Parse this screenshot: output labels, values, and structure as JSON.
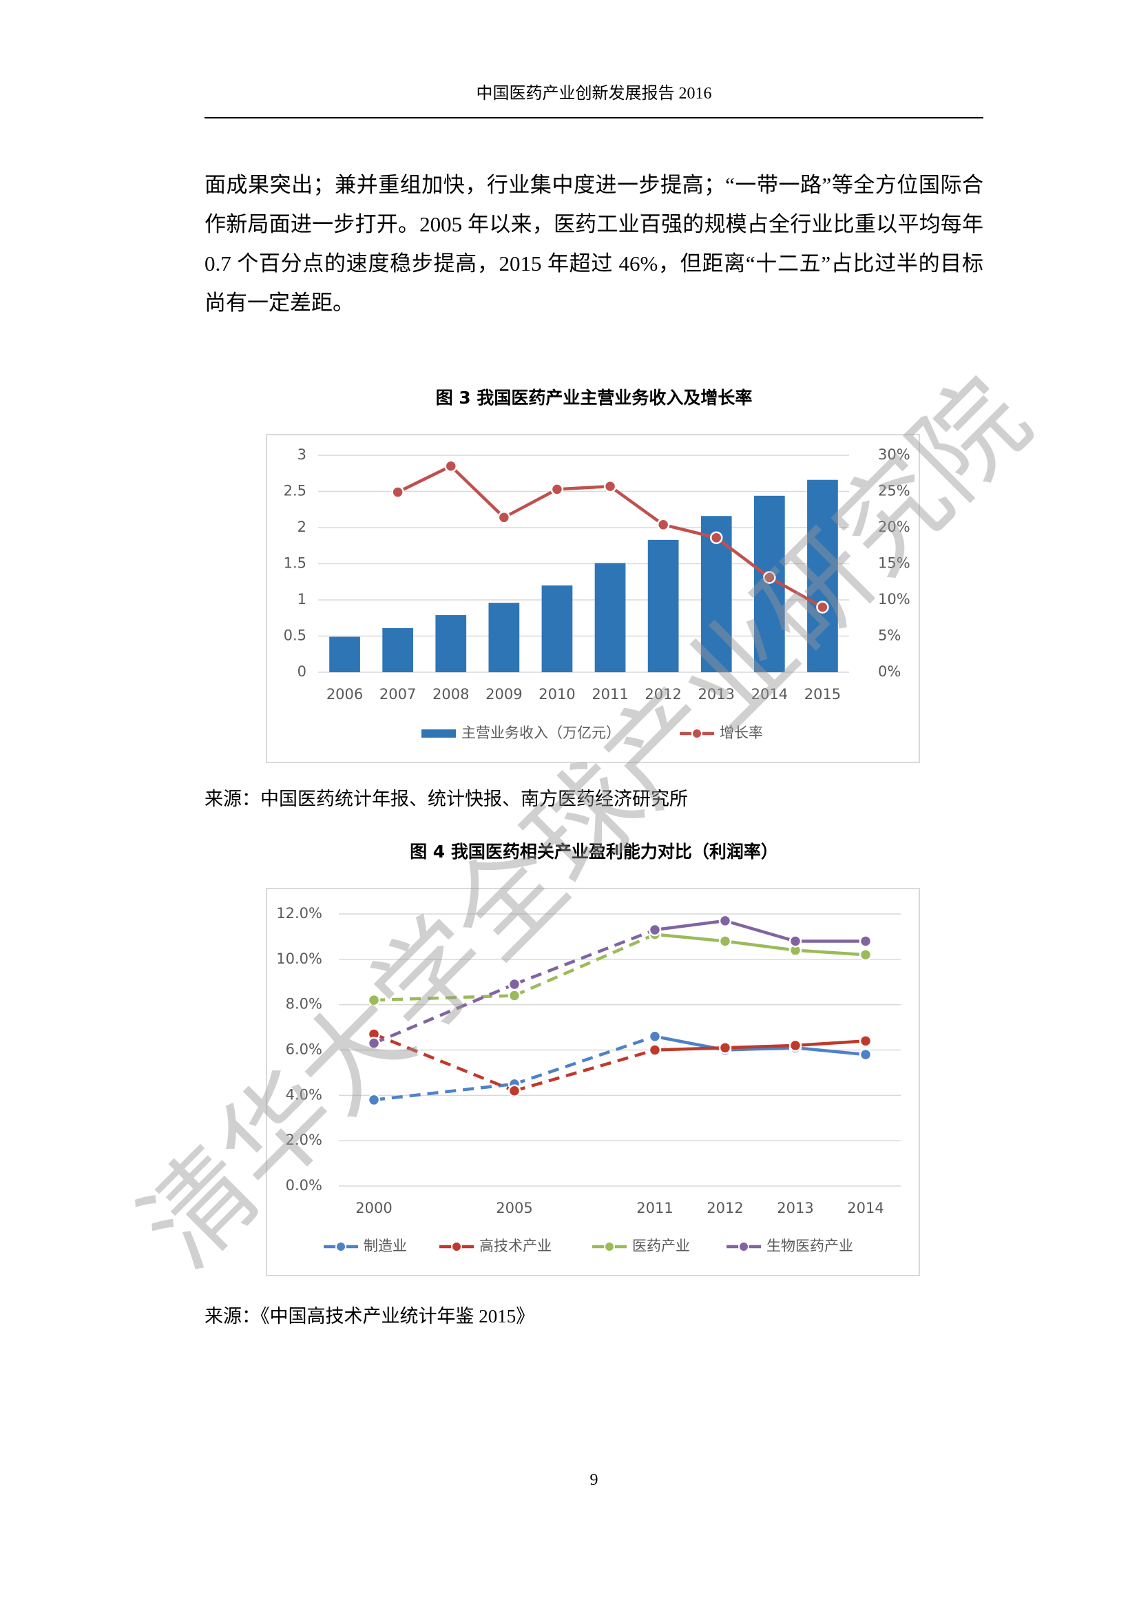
{
  "document": {
    "header": "中国医药产业创新发展报告 2016",
    "paragraph": "面成果突出；兼并重组加快，行业集中度进一步提高；“一带一路”等全方位国际合作新局面进一步打开。2005 年以来，医药工业百强的规模占全行业比重以平均每年 0.7 个百分点的速度稳步提高，2015 年超过 46%，但距离“十二五”占比过半的目标尚有一定差距。",
    "page_number": "9",
    "watermark": "清华大学全球产业研究院"
  },
  "chart_data": [
    {
      "type": "bar",
      "title": "图 3 我国医药产业主营业务收入及增长率",
      "source": "来源：中国医药统计年报、统计快报、南方医药经济研究所",
      "categories": [
        "2006",
        "2007",
        "2008",
        "2009",
        "2010",
        "2011",
        "2012",
        "2013",
        "2014",
        "2015"
      ],
      "series": [
        {
          "name": "主营业务收入（万亿元）",
          "type": "bar",
          "color": "#2e75b6",
          "values": [
            0.49,
            0.61,
            0.79,
            0.96,
            1.2,
            1.51,
            1.83,
            2.16,
            2.44,
            2.66
          ]
        },
        {
          "name": "增长率",
          "type": "line",
          "axis": "y2",
          "color": "#c0504d",
          "values": [
            null,
            24.9,
            28.5,
            21.4,
            25.3,
            25.7,
            20.4,
            18.6,
            13.1,
            9.0
          ]
        }
      ],
      "ylim": [
        0,
        3
      ],
      "yticks": [
        0,
        0.5,
        1,
        1.5,
        2,
        2.5,
        3
      ],
      "y2lim": [
        0,
        30
      ],
      "y2ticks": [
        {
          "value": 0,
          "label": "0%"
        },
        {
          "value": 5,
          "label": "5%"
        },
        {
          "value": 10,
          "label": "10%"
        },
        {
          "value": 15,
          "label": "15%"
        },
        {
          "value": 20,
          "label": "20%"
        },
        {
          "value": 25,
          "label": "25%"
        },
        {
          "value": 30,
          "label": "30%"
        }
      ],
      "grid": true,
      "legend": "bottom"
    },
    {
      "type": "line",
      "title": "图 4 我国医药相关产业盈利能力对比（利润率）",
      "source": "来源：《中国高技术产业统计年鉴 2015》",
      "categories": [
        "2000",
        null,
        "2005",
        null,
        "2011",
        "2012",
        "2013",
        "2014"
      ],
      "series": [
        {
          "name": "制造业",
          "color": "#4f81c7",
          "values": [
            3.8,
            null,
            4.5,
            null,
            6.6,
            6.0,
            6.1,
            5.8
          ]
        },
        {
          "name": "高技术产业",
          "color": "#c0392b",
          "values": [
            6.7,
            null,
            4.2,
            null,
            6.0,
            6.1,
            6.2,
            6.4
          ]
        },
        {
          "name": "医药产业",
          "color": "#9bbb59",
          "values": [
            8.2,
            null,
            8.4,
            null,
            11.1,
            10.8,
            10.4,
            10.2
          ]
        },
        {
          "name": "生物医药产业",
          "color": "#8064a2",
          "values": [
            6.3,
            null,
            8.9,
            null,
            11.3,
            11.7,
            10.8,
            10.8
          ]
        }
      ],
      "ylim": [
        0,
        12
      ],
      "yticks": [
        {
          "value": 0,
          "label": "0.0%"
        },
        {
          "value": 2,
          "label": "2.0%"
        },
        {
          "value": 4,
          "label": "4.0%"
        },
        {
          "value": 6,
          "label": "6.0%"
        },
        {
          "value": 8,
          "label": "8.0%"
        },
        {
          "value": 10,
          "label": "10.0%"
        },
        {
          "value": 12,
          "label": "12.0%"
        }
      ],
      "grid": true,
      "legend": "bottom"
    }
  ]
}
